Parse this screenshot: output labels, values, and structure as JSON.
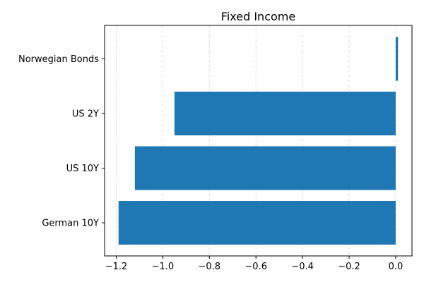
{
  "chart_data": {
    "type": "bar",
    "orientation": "horizontal",
    "title": "Fixed Income",
    "xlabel": "",
    "ylabel": "",
    "categories": [
      "German 10Y",
      "US 10Y",
      "US 2Y",
      "Norwegian Bonds"
    ],
    "values": [
      -1.19,
      -1.12,
      -0.95,
      0.01
    ],
    "xlim": [
      -1.25,
      0.07
    ],
    "x_ticks": [
      -1.2,
      -1.0,
      -0.8,
      -0.6,
      -0.4,
      -0.2,
      0.0
    ],
    "x_tick_labels": [
      "−1.2",
      "−1.0",
      "−0.8",
      "−0.6",
      "−0.4",
      "−0.2",
      "0.0"
    ],
    "bar_color": "#1f77b4",
    "grid": "vertical dashed",
    "legend": "none"
  }
}
